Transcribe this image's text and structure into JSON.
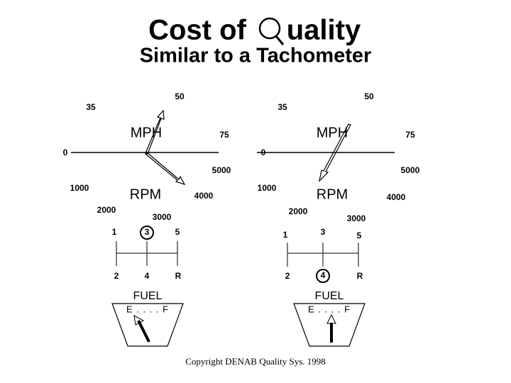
{
  "title": {
    "before_q": "Cost of",
    "after_q": "uality"
  },
  "subtitle": "Similar to a Tachometer",
  "gauges": [
    {
      "speed_labels": [
        "50",
        "35",
        "75",
        "0"
      ],
      "speed_unit": "MPH",
      "rpm_labels": [
        "5000",
        "1000",
        "4000",
        "2000",
        "3000"
      ],
      "rpm_unit": "RPM",
      "gears": [
        "1",
        "3",
        "5",
        "2",
        "4",
        "R"
      ],
      "fuel_label": "FUEL",
      "fuel_scale": "E . . . . F"
    },
    {
      "speed_labels": [
        "50",
        "35",
        "75",
        "0"
      ],
      "speed_unit": "MPH",
      "rpm_labels": [
        "5000",
        "1000",
        "4000",
        "2000",
        "3000"
      ],
      "rpm_unit": "RPM",
      "gears": [
        "1",
        "3",
        "5",
        "2",
        "4",
        "R"
      ],
      "fuel_label": "FUEL",
      "fuel_scale": "E . . . . F"
    }
  ],
  "copyright": "Copyright DENAB Quality Sys. 1998"
}
